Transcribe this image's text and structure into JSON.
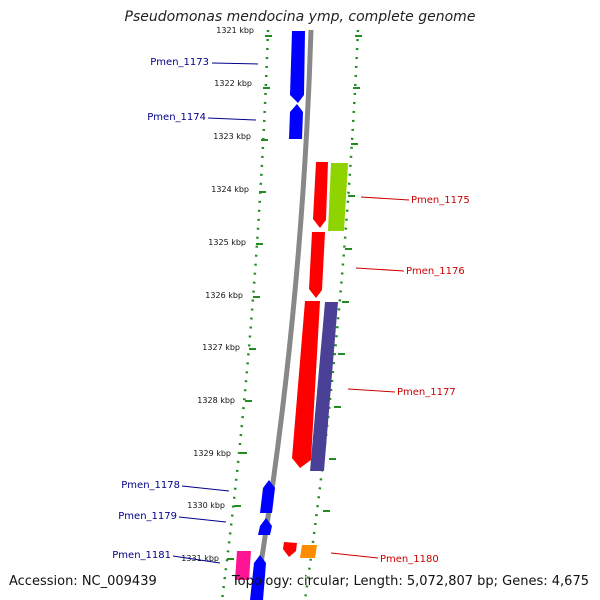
{
  "title": "Pseudomonas mendocina ymp, complete genome",
  "footer": {
    "accession": "Accession: NC_009439",
    "summary": "Topology: circular; Length: 5,072,807 bp; Genes: 4,675"
  },
  "kbp_labels": [
    "1321 kbp",
    "1322 kbp",
    "1323 kbp",
    "1324 kbp",
    "1325 kbp",
    "1326 kbp",
    "1327 kbp",
    "1328 kbp",
    "1329 kbp",
    "1330 kbp",
    "1331 kbp"
  ],
  "gene_labels": {
    "left": [
      "Pmen_1173",
      "Pmen_1174",
      "Pmen_1178",
      "Pmen_1179",
      "Pmen_1181"
    ],
    "right": [
      "Pmen_1175",
      "Pmen_1176",
      "Pmen_1177",
      "Pmen_1180"
    ]
  },
  "colors": {
    "reverse_strand_gene": "#0000ff",
    "forward_strand_gene": "#ff0000",
    "left_label": "#00008b",
    "right_label": "#cc0000",
    "tick": "#228b22",
    "backbone": "#888888",
    "feature_green": "#8fd400",
    "feature_purple": "#4a4095",
    "feature_orange": "#ff8c00",
    "feature_pink": "#ff1493"
  }
}
